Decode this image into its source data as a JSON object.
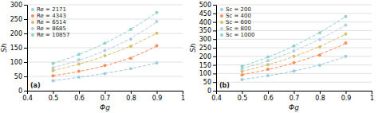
{
  "chart_data": [
    {
      "type": "scatter",
      "x_label": "Φg",
      "y_label": "Sh",
      "annotation": "(a)",
      "xlim": [
        0.4,
        1
      ],
      "ylim": [
        0,
        300
      ],
      "xticks": [
        0.4,
        0.5,
        0.6,
        0.7,
        0.8,
        0.9,
        1
      ],
      "yticks": [
        0,
        50,
        100,
        150,
        200,
        250,
        300
      ],
      "grid": "y",
      "legend": "upper left",
      "x": [
        0.5,
        0.6,
        0.7,
        0.8,
        0.9
      ],
      "series": [
        {
          "name": "Re = 2171",
          "color": "#9ecae1",
          "marker": "circle",
          "line_style": "dashed",
          "values": [
            35,
            47,
            60,
            77,
            97
          ],
          "fit_values": [
            35.15,
            46.49,
            60.41,
            77.14,
            96.8
          ]
        },
        {
          "name": "Re = 4343",
          "color": "#fc8d59",
          "marker": "circle",
          "line_style": "dashed",
          "values": [
            52,
            68,
            88,
            113,
            157
          ],
          "fit_values": [
            52.4,
            67.12,
            87.37,
            115.59,
            155.42
          ]
        },
        {
          "name": "Re = 6514",
          "color": "#d4c06b",
          "marker": "circle",
          "line_style": "dashed",
          "values": [
            70,
            93,
            122,
            155,
            201
          ],
          "fit_values": [
            70.16,
            92.77,
            121.25,
            156.67,
            200.13
          ]
        },
        {
          "name": "Re = 8685",
          "color": "#b3cde3",
          "marker": "circle",
          "line_style": "dashed",
          "values": [
            80,
            108,
            140,
            180,
            242
          ],
          "fit_values": [
            80.66,
            106.3,
            139.75,
            183.31,
            239.88
          ]
        },
        {
          "name": "Re = 10857",
          "color": "#8dd3c7",
          "marker": "circle",
          "line_style": "dashed",
          "values": [
            95,
            127,
            166,
            214,
            273
          ],
          "fit_values": [
            95.12,
            126.66,
            166.08,
            214.45,
            272.69
          ]
        }
      ]
    },
    {
      "type": "scatter",
      "x_label": "Φg",
      "y_label": "Sh",
      "annotation": "(b)",
      "xlim": [
        0.4,
        1
      ],
      "ylim": [
        0,
        500
      ],
      "xticks": [
        0.4,
        0.5,
        0.6,
        0.7,
        0.8,
        0.9,
        1
      ],
      "yticks": [
        0,
        50,
        100,
        150,
        200,
        250,
        300,
        350,
        400,
        450,
        500
      ],
      "grid": "y",
      "legend": "upper left",
      "x": [
        0.5,
        0.6,
        0.7,
        0.8,
        0.9
      ],
      "series": [
        {
          "name": "Sc = 200",
          "color": "#9ecae1",
          "marker": "circle",
          "line_style": "dashed",
          "values": [
            65,
            88,
            115,
            148,
            200
          ],
          "fit_values": [
            65.51,
            86.75,
            114.57,
            150.89,
            198.2
          ]
        },
        {
          "name": "Sc = 400",
          "color": "#fc8d59",
          "marker": "circle",
          "line_style": "dashed",
          "values": [
            92,
            125,
            163,
            207,
            278
          ],
          "fit_values": [
            92.81,
            123.07,
            162.06,
            211.87,
            275.05
          ]
        },
        {
          "name": "Sc = 600",
          "color": "#d4c06b",
          "marker": "circle",
          "line_style": "dashed",
          "values": [
            112,
            152,
            200,
            255,
            330
          ],
          "fit_values": [
            112.44,
            151.02,
            199.2,
            258.04,
            328.27
          ]
        },
        {
          "name": "Sc = 800",
          "color": "#b3cde3",
          "marker": "circle",
          "line_style": "dashed",
          "values": [
            128,
            175,
            232,
            298,
            382
          ],
          "fit_values": [
            128.31,
            174.3,
            231.4,
            300.24,
            380.74
          ]
        },
        {
          "name": "Sc = 1000",
          "color": "#8dd3c7",
          "marker": "circle",
          "line_style": "dashed",
          "values": [
            142,
            197,
            260,
            337,
            432
          ],
          "fit_values": [
            142.6,
            195.2,
            260.55,
            339.15,
            430.48
          ]
        }
      ]
    }
  ]
}
